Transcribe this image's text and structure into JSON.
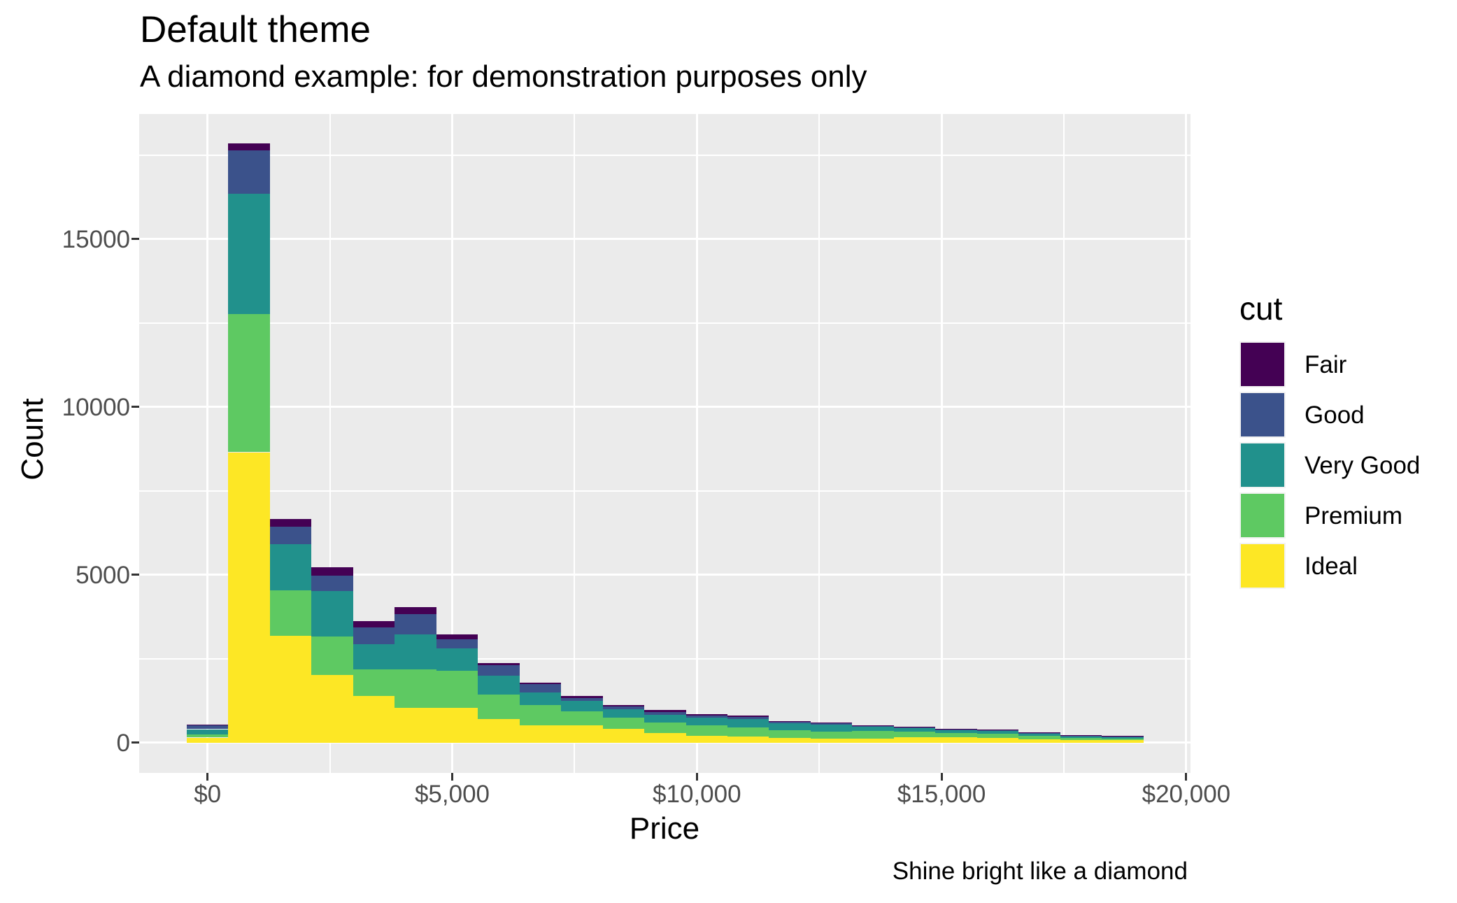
{
  "title": "Default theme",
  "subtitle": "A diamond example: for demonstration purposes only",
  "caption": "Shine bright like a diamond",
  "x_axis": {
    "label": "Price",
    "tick_values": [
      0,
      5000,
      10000,
      15000,
      20000
    ],
    "tick_labels": [
      "$0",
      "$5,000",
      "$10,000",
      "$15,000",
      "$20,000"
    ],
    "minor_values": [
      2500,
      7500,
      12500,
      17500
    ]
  },
  "y_axis": {
    "label": "Count",
    "tick_values": [
      0,
      5000,
      10000,
      15000
    ],
    "tick_labels": [
      "0",
      "5000",
      "10000",
      "15000"
    ],
    "minor_values": [
      2500,
      7500,
      12500,
      17500
    ]
  },
  "legend": {
    "title": "cut",
    "entries": [
      {
        "label": "Fair",
        "color": "#440154"
      },
      {
        "label": "Good",
        "color": "#3B528B"
      },
      {
        "label": "Very Good",
        "color": "#21918C"
      },
      {
        "label": "Premium",
        "color": "#5EC962"
      },
      {
        "label": "Ideal",
        "color": "#FDE725"
      }
    ]
  },
  "chart_data": {
    "type": "bar",
    "subtype": "stacked-histogram",
    "title": "Default theme",
    "xlabel": "Price",
    "ylabel": "Count",
    "bin_width": 850,
    "categories": [
      0,
      850,
      1700,
      2550,
      3400,
      4250,
      5100,
      5950,
      6800,
      7650,
      8500,
      9350,
      10200,
      11050,
      11900,
      12750,
      13600,
      14450,
      15300,
      16150,
      17000,
      17850,
      18700
    ],
    "series": [
      {
        "name": "Fair",
        "color": "#440154",
        "values": [
          20,
          210,
          230,
          260,
          175,
          210,
          160,
          50,
          50,
          55,
          50,
          55,
          50,
          35,
          20,
          20,
          15,
          15,
          15,
          15,
          10,
          10,
          10
        ]
      },
      {
        "name": "Good",
        "color": "#3B528B",
        "values": [
          120,
          1280,
          530,
          450,
          500,
          590,
          260,
          320,
          245,
          95,
          90,
          85,
          60,
          55,
          50,
          50,
          35,
          35,
          40,
          40,
          40,
          40,
          30
        ]
      },
      {
        "name": "Very Good",
        "color": "#21918C",
        "values": [
          160,
          3580,
          1375,
          1355,
          750,
          1040,
          675,
          570,
          380,
          300,
          235,
          245,
          220,
          255,
          210,
          200,
          125,
          110,
          85,
          75,
          70,
          40,
          40
        ]
      },
      {
        "name": "Premium",
        "color": "#5EC962",
        "values": [
          90,
          4120,
          1350,
          1145,
          800,
          1145,
          1095,
          730,
          605,
          420,
          345,
          300,
          310,
          280,
          220,
          215,
          230,
          160,
          125,
          130,
          90,
          55,
          55
        ]
      },
      {
        "name": "Ideal",
        "color": "#FDE725",
        "values": [
          150,
          8650,
          3180,
          2015,
          1390,
          1045,
          1040,
          695,
          505,
          520,
          405,
          290,
          210,
          175,
          140,
          120,
          115,
          160,
          155,
          140,
          105,
          85,
          70
        ]
      }
    ],
    "stack_bottom_to_top": [
      "Ideal",
      "Premium",
      "Very Good",
      "Good",
      "Fair"
    ],
    "xlim": [
      -1400,
      20100
    ],
    "ylim": [
      -890,
      18725
    ],
    "grid": true,
    "legend_position": "right",
    "panel_background": "#EBEBEB",
    "gridline_color": "#FFFFFF"
  }
}
